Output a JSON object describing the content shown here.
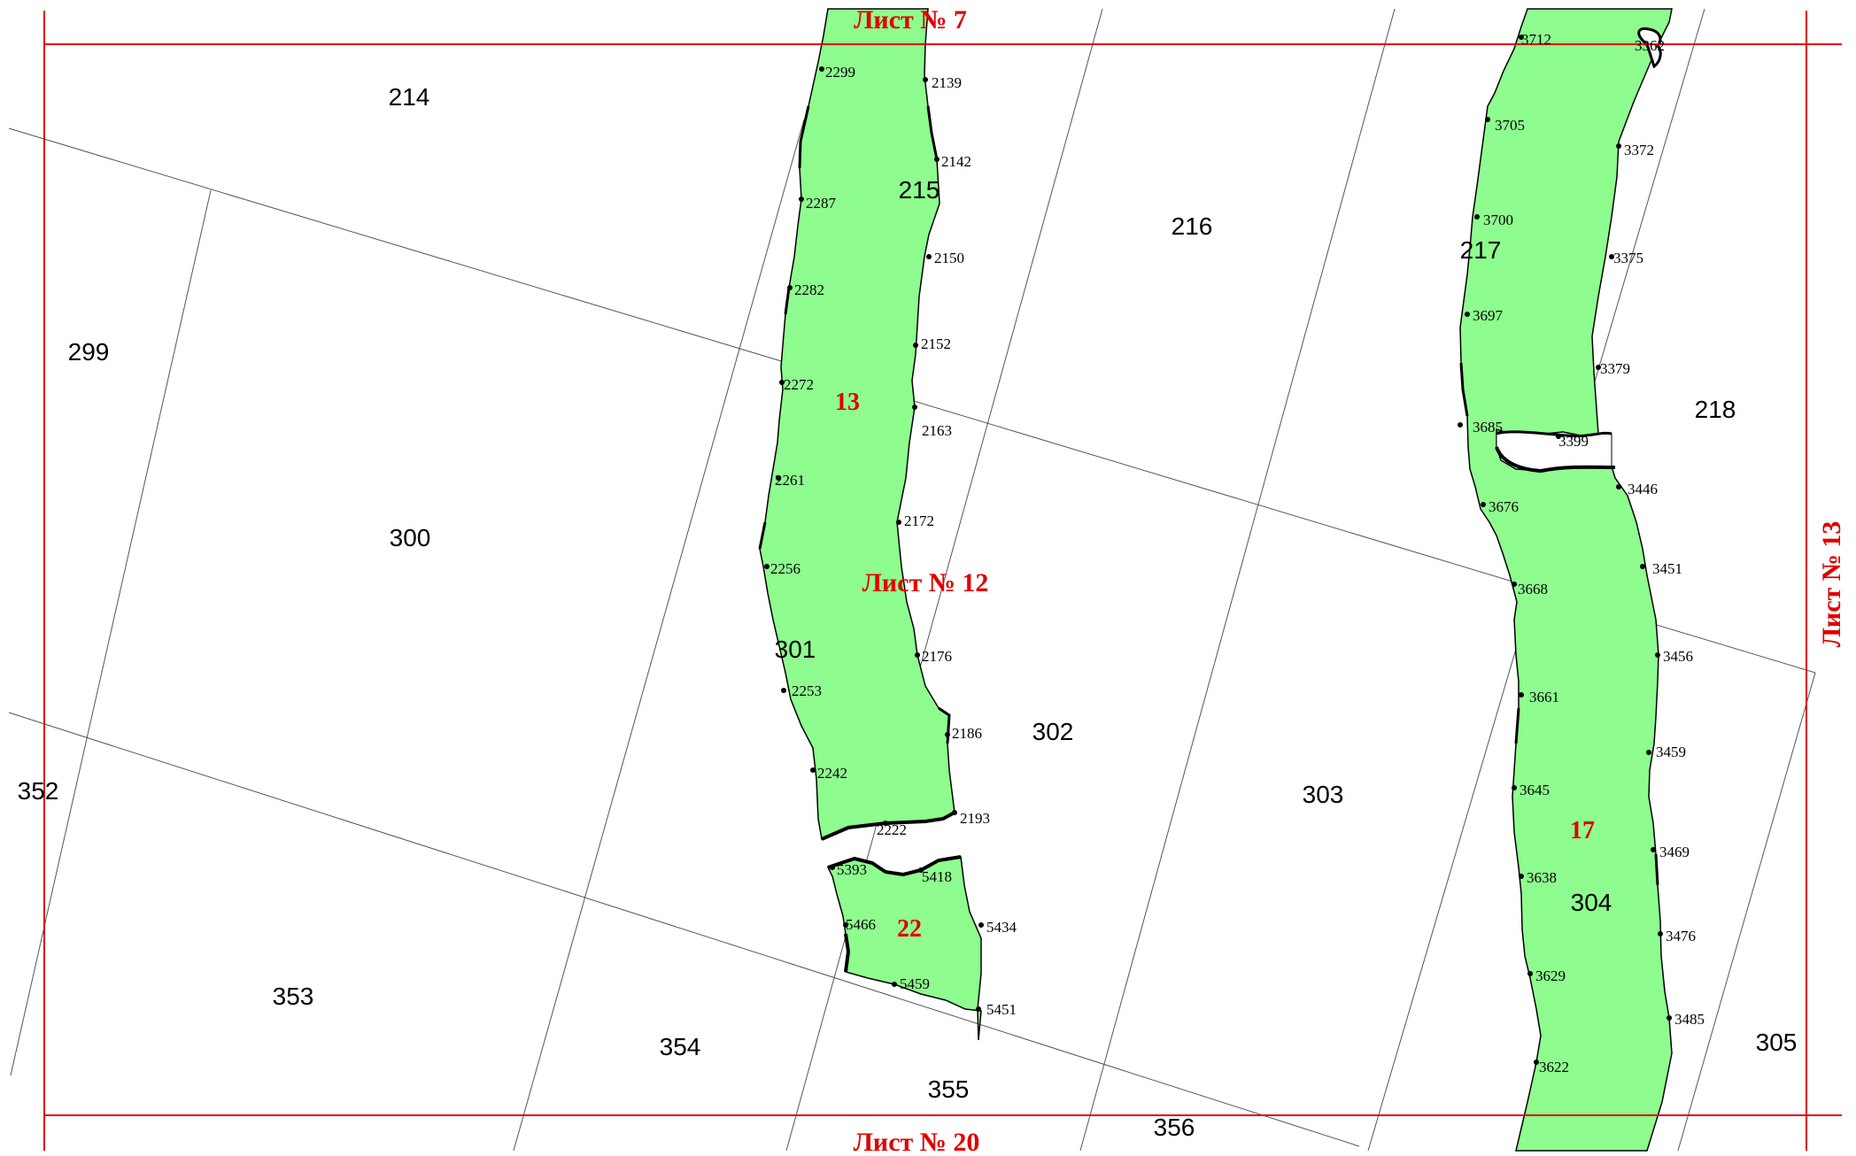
{
  "colors": {
    "frame": "#e00000",
    "zone_fill": "#8efc8e",
    "boundary": "#000000",
    "grid": "#555555",
    "zone_label": "#e00000"
  },
  "sheets": {
    "top": "Лист № 7",
    "center": "Лист № 12",
    "right": "Лист № 13",
    "bottom": "Лист № 20"
  },
  "zones": [
    {
      "id": "13"
    },
    {
      "id": "22"
    },
    {
      "id": "17"
    }
  ],
  "parcels": [
    "214",
    "215",
    "216",
    "217",
    "218",
    "299",
    "300",
    "301",
    "302",
    "303",
    "304",
    "305",
    "352",
    "353",
    "354",
    "355",
    "356"
  ],
  "points": [
    "2299",
    "2139",
    "2142",
    "2287",
    "2150",
    "2282",
    "2152",
    "2272",
    "2163",
    "2261",
    "2172",
    "2256",
    "2176",
    "2253",
    "2186",
    "2242",
    "2193",
    "2222",
    "5393",
    "5418",
    "5466",
    "5434",
    "5459",
    "5451",
    "3712",
    "3362",
    "3705",
    "3372",
    "3700",
    "3375",
    "3697",
    "3379",
    "3685",
    "3399",
    "3446",
    "3676",
    "3451",
    "3668",
    "3456",
    "3661",
    "3459",
    "3645",
    "3469",
    "3638",
    "3476",
    "3629",
    "3485",
    "3622"
  ]
}
